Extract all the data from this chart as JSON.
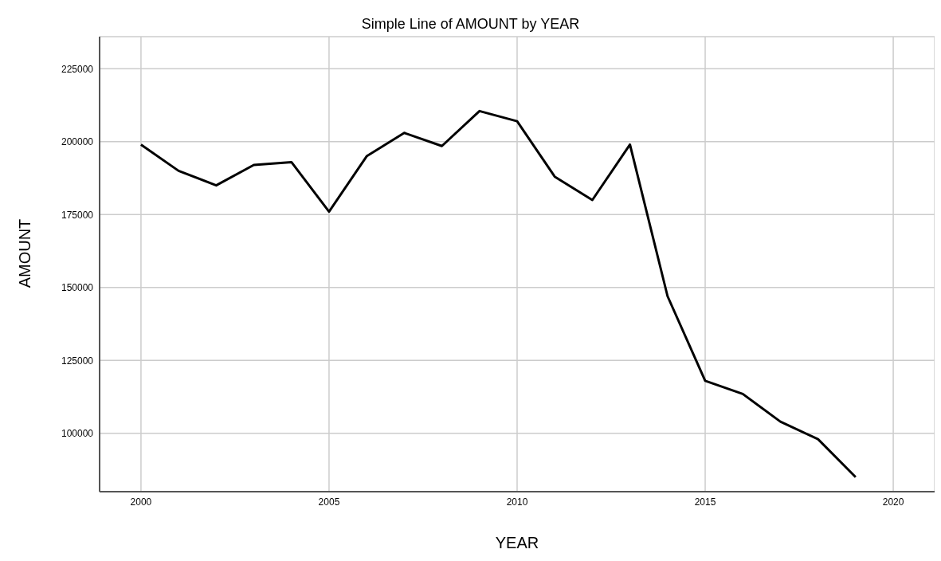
{
  "chart_data": {
    "type": "line",
    "title": "Simple Line of AMOUNT by YEAR",
    "xlabel": "YEAR",
    "ylabel": "AMOUNT",
    "x": [
      2000,
      2001,
      2002,
      2003,
      2004,
      2005,
      2006,
      2007,
      2008,
      2009,
      2010,
      2011,
      2012,
      2013,
      2014,
      2015,
      2016,
      2017,
      2018,
      2019
    ],
    "series": [
      {
        "color": "#000000",
        "values": [
          199000,
          190000,
          185000,
          192000,
          193000,
          176000,
          195000,
          203000,
          198500,
          210500,
          207000,
          188000,
          180000,
          199000,
          147000,
          118000,
          113500,
          104000,
          98000,
          85000
        ]
      }
    ],
    "xlim": [
      1998.9,
      2021.1
    ],
    "xticks": [
      2000,
      2005,
      2010,
      2015,
      2020
    ],
    "ylim": [
      80000,
      236000
    ],
    "yticks": [
      100000,
      125000,
      150000,
      175000,
      200000,
      225000
    ],
    "grid": true,
    "marker": "none",
    "line_style": "solid",
    "legend": false
  }
}
